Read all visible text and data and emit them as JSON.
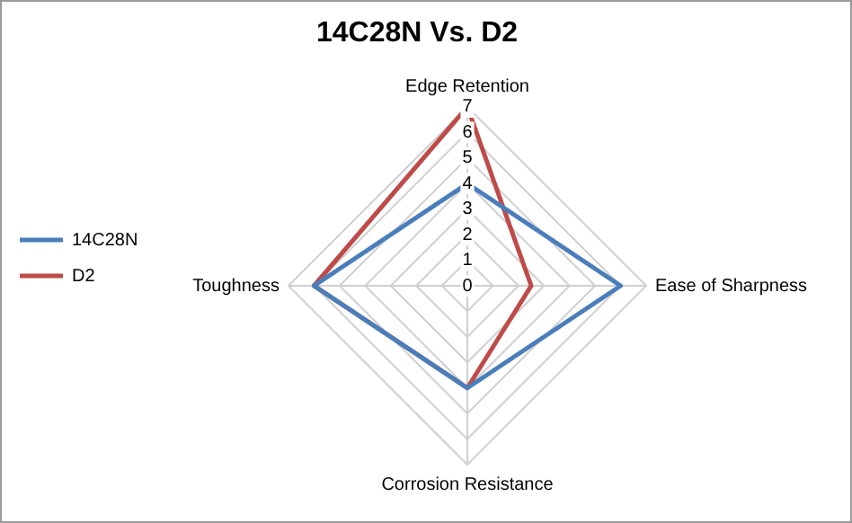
{
  "chart_data": {
    "type": "radar",
    "title": "14C28N Vs. D2",
    "categories": [
      "Edge Retention",
      "Ease of Sharpness",
      "Corrosion Resistance",
      "Toughness"
    ],
    "series": [
      {
        "name": "14C28N",
        "color": "#4a7ebb",
        "values": [
          4,
          6,
          4,
          6
        ]
      },
      {
        "name": "D2",
        "color": "#be4b48",
        "values": [
          7,
          2.5,
          4,
          6
        ]
      }
    ],
    "ylim": [
      0,
      7
    ],
    "yticks": [
      0,
      1,
      2,
      3,
      4,
      5,
      6,
      7
    ],
    "grid": true,
    "legend": "left",
    "marker": "none",
    "line_style": "solid"
  }
}
